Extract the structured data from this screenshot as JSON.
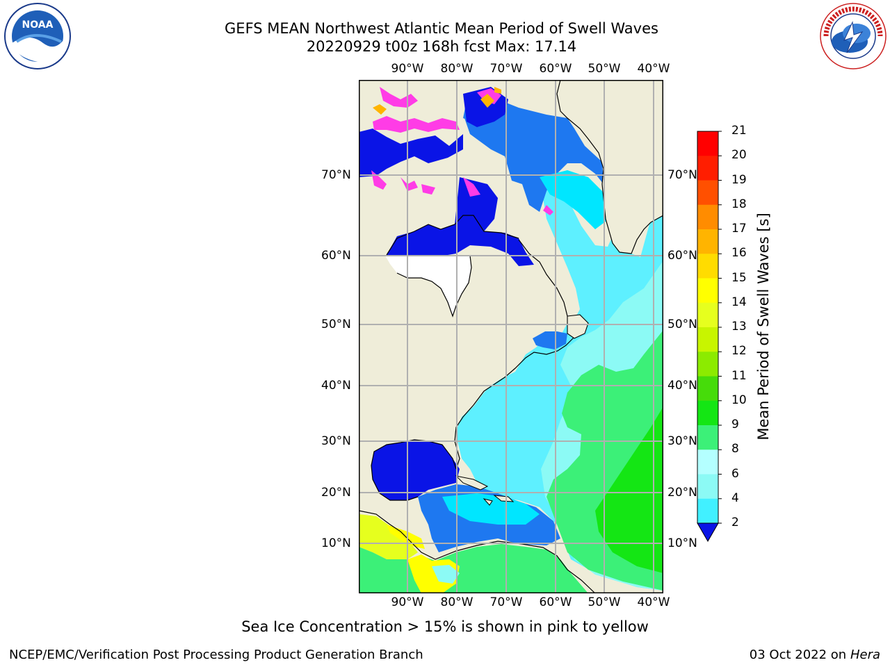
{
  "header": {
    "title_line1": "GEFS MEAN Northwest Atlantic Mean Period of Swell Waves",
    "title_line2": "20220929 t00z 168h fcst   Max: 17.14"
  },
  "logos": {
    "left_name": "NOAA",
    "left_ring_text": "NATIONAL OCEANIC AND ATMOSPHERIC ADMINISTRATION · U.S. DEPARTMENT OF COMMERCE",
    "right_ring_text": "NATIONAL WEATHER SERVICE"
  },
  "map": {
    "lon_labels": [
      "90°W",
      "80°W",
      "70°W",
      "60°W",
      "50°W",
      "40°W"
    ],
    "lat_labels": [
      "70°N",
      "60°N",
      "50°N",
      "40°N",
      "30°N",
      "20°N",
      "10°N"
    ],
    "colors": {
      "land": "#efedd9",
      "border": "#000000",
      "grid": "#b0b0b0"
    }
  },
  "colorbar": {
    "title": "Mean Period of Swell Waves [s]",
    "ticks": [
      "2",
      "4",
      "6",
      "8",
      "9",
      "10",
      "11",
      "12",
      "13",
      "14",
      "15",
      "16",
      "17",
      "18",
      "19",
      "20",
      "21"
    ],
    "colors": [
      "#0a14e6",
      "#1e78f0",
      "#00e6ff",
      "#41f0ff",
      "#8cfaf5",
      "#b4ffff",
      "#3cf078",
      "#14e614",
      "#46dc0a",
      "#8ceb00",
      "#c8f500",
      "#e6ff1e",
      "#ffff00",
      "#ffdc00",
      "#ffb400",
      "#ff8c00",
      "#ff5000",
      "#ff1e00",
      "#ff0000"
    ]
  },
  "caption": "Sea Ice Concentration > 15% is shown in pink to yellow",
  "footer": {
    "left": "NCEP/EMC/Verification Post Processing Product Generation Branch",
    "date": "03 Oct 2022 on ",
    "machine": "Hera"
  }
}
